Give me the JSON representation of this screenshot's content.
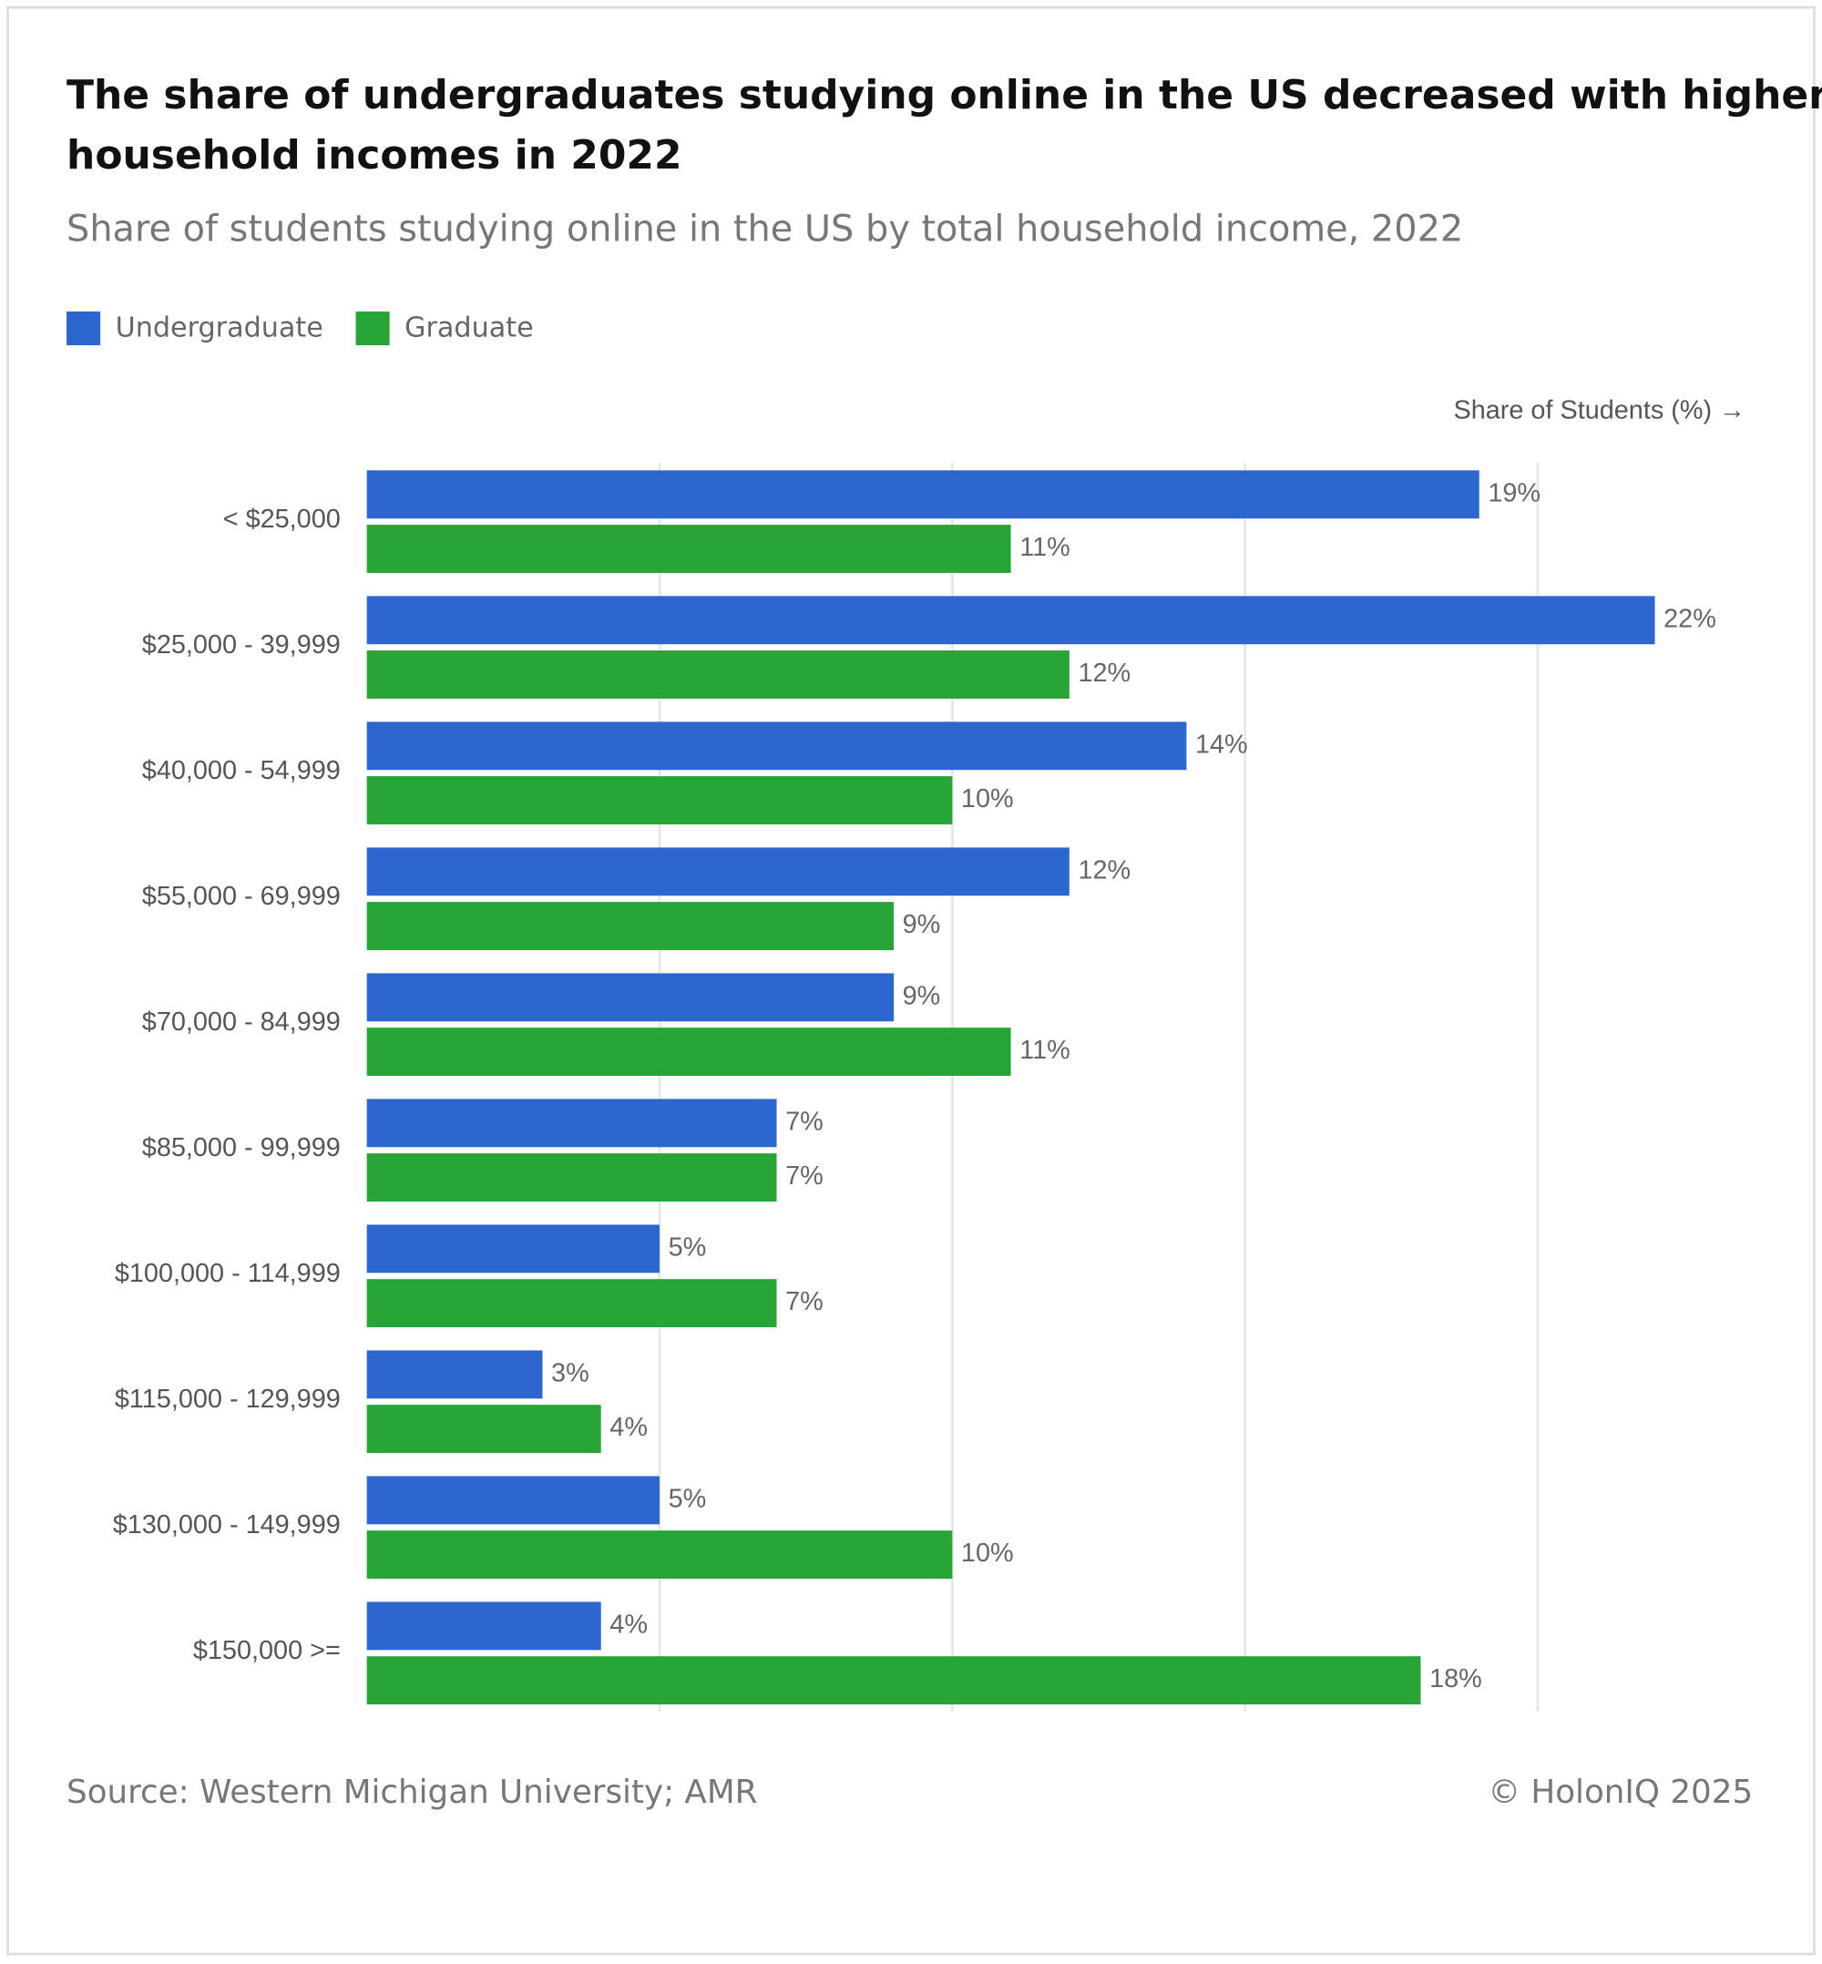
{
  "chart_data": {
    "type": "hbar",
    "title": [
      "The share of undergraduates studying online in the US decreased with higher",
      "household incomes in 2022"
    ],
    "subtitle": "Share of students studying online in the US by total household income, 2022",
    "x_label": "Share of Students (%) →",
    "categories": [
      "< $25,000",
      "$25,000 - 39,999",
      "$40,000 - 54,999",
      "$55,000 - 69,999",
      "$70,000 - 84,999",
      "$85,000 - 99,999",
      "$100,000 - 114,999",
      "$115,000 - 129,999",
      "$130,000 - 149,999",
      "$150,000 >="
    ],
    "series": [
      {
        "name": "Undergraduate",
        "color": "#2c66cf",
        "values": [
          19,
          22,
          14,
          12,
          9,
          7,
          5,
          3,
          5,
          4
        ],
        "value_labels": [
          "19%",
          "22%",
          "14%",
          "12%",
          "9%",
          "7%",
          "5%",
          "3%",
          "5%",
          "4%"
        ]
      },
      {
        "name": "Graduate",
        "color": "#29a436",
        "values": [
          11,
          12,
          10,
          9,
          11,
          7,
          7,
          4,
          10,
          18
        ],
        "value_labels": [
          "11%",
          "12%",
          "10%",
          "9%",
          "11%",
          "7%",
          "7%",
          "4%",
          "10%",
          "18%"
        ]
      }
    ],
    "xlim": [
      0,
      24
    ],
    "xticks": [
      5,
      10,
      15,
      20
    ],
    "grid": true,
    "legend": "top-left",
    "source": "Source: Western Michigan University; AMR",
    "credit": "© HolonIQ 2025"
  }
}
